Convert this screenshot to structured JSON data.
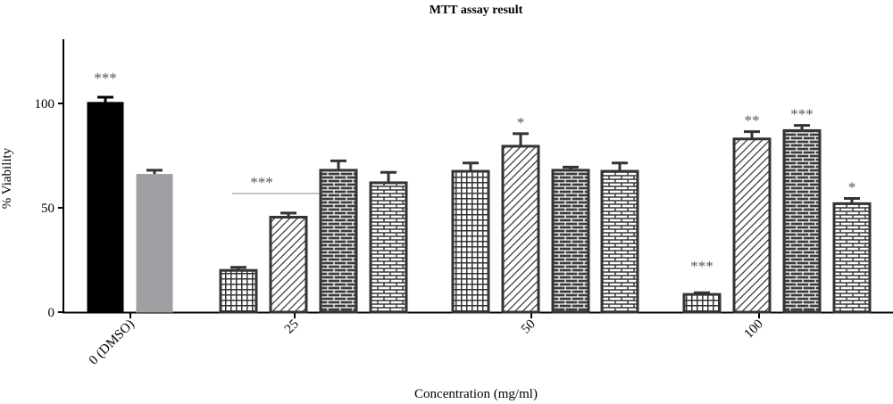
{
  "chart_data": {
    "type": "bar",
    "title": "MTT assay result",
    "xlabel": "Concentration (mg/ml)",
    "ylabel": "% Viability",
    "ylim": [
      0,
      130
    ],
    "yticks": [
      "0",
      "50",
      "100"
    ],
    "categories": [
      "0 (DMSO)",
      "25",
      "50",
      "100"
    ],
    "bars": [
      {
        "group": "0 (DMSO)",
        "value": 100.5,
        "error": 2.5,
        "pattern": "solid-black",
        "sig": "***"
      },
      {
        "group": "0 (DMSO)",
        "value": 66,
        "error": 2,
        "pattern": "solid-gray",
        "sig": ""
      },
      {
        "group": "25",
        "value": 20,
        "error": 1.5,
        "pattern": "grid",
        "sig": ""
      },
      {
        "group": "25",
        "value": 45.5,
        "error": 2,
        "pattern": "diagonal",
        "sig": ""
      },
      {
        "group": "25",
        "value": 68,
        "error": 4.5,
        "pattern": "brick-dark",
        "sig": ""
      },
      {
        "group": "25",
        "value": 62,
        "error": 5,
        "pattern": "brick-light",
        "sig": ""
      },
      {
        "group": "50",
        "value": 67.5,
        "error": 4,
        "pattern": "grid",
        "sig": ""
      },
      {
        "group": "50",
        "value": 79.5,
        "error": 6,
        "pattern": "diagonal",
        "sig": "*"
      },
      {
        "group": "50",
        "value": 68,
        "error": 1.5,
        "pattern": "brick-dark",
        "sig": ""
      },
      {
        "group": "50",
        "value": 67.5,
        "error": 4,
        "pattern": "brick-light",
        "sig": ""
      },
      {
        "group": "100",
        "value": 8.5,
        "error": 0.8,
        "pattern": "grid",
        "sig": "***"
      },
      {
        "group": "100",
        "value": 83,
        "error": 3.5,
        "pattern": "diagonal",
        "sig": "**"
      },
      {
        "group": "100",
        "value": 87,
        "error": 2.5,
        "pattern": "brick-dark",
        "sig": "***"
      },
      {
        "group": "100",
        "value": 52,
        "error": 2.5,
        "pattern": "brick-light",
        "sig": "*"
      }
    ],
    "group_annotations": [
      {
        "group": "25",
        "text": "***"
      }
    ],
    "grid": false,
    "legend": "none",
    "colors": {
      "outline": "#333333",
      "black": "#000000",
      "gray": "#a0a0a4",
      "annotation": "#555555"
    }
  }
}
